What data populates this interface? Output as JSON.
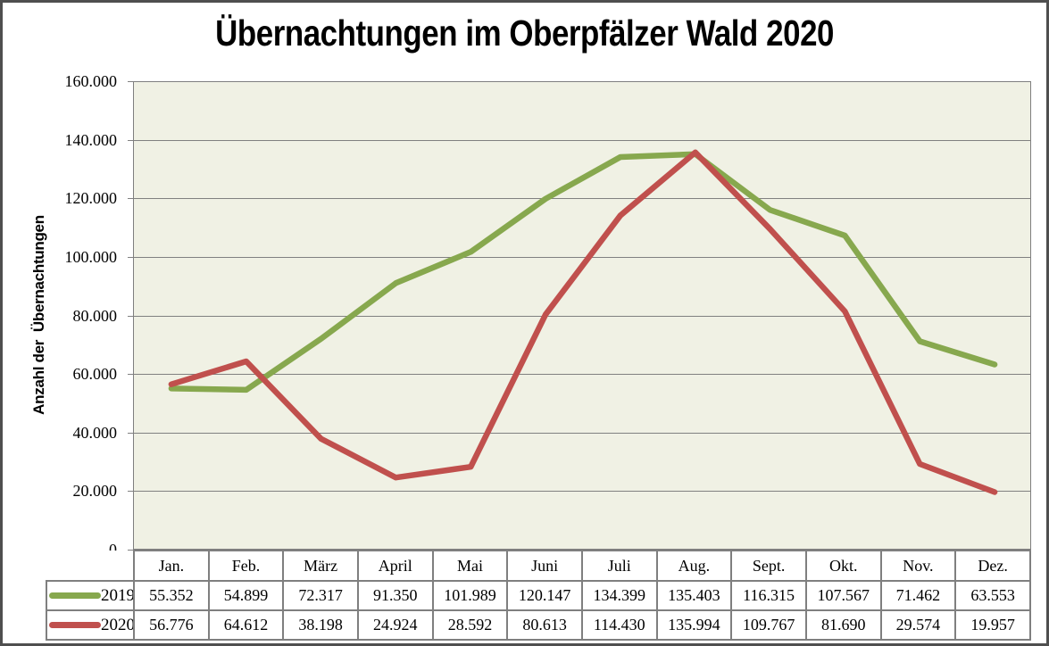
{
  "frame": {
    "border_color": "#4f4f4f",
    "background": "#ffffff"
  },
  "chart_data": {
    "type": "line",
    "title": "Übernachtungen im Oberpfälzer Wald 2020",
    "xlabel": "",
    "ylabel": "Anzahl der  Übernachtungen",
    "categories": [
      "Jan.",
      "Feb.",
      "März",
      "April",
      "Mai",
      "Juni",
      "Juli",
      "Aug.",
      "Sept.",
      "Okt.",
      "Nov.",
      "Dez."
    ],
    "series": [
      {
        "name": "2019",
        "color": "#87a84e",
        "values": [
          55352,
          54899,
          72317,
          91350,
          101989,
          120147,
          134399,
          135403,
          116315,
          107567,
          71462,
          63553
        ],
        "display_values": [
          "55.352",
          "54.899",
          "72.317",
          "91.350",
          "101.989",
          "120.147",
          "134.399",
          "135.403",
          "116.315",
          "107.567",
          "71.462",
          "63.553"
        ]
      },
      {
        "name": "2020",
        "color": "#c0504d",
        "values": [
          56776,
          64612,
          38198,
          24924,
          28592,
          80613,
          114430,
          135994,
          109767,
          81690,
          29574,
          19957
        ],
        "display_values": [
          "56.776",
          "64.612",
          "38.198",
          "24.924",
          "28.592",
          "80.613",
          "114.430",
          "135.994",
          "109.767",
          "81.690",
          "29.574",
          "19.957"
        ]
      }
    ],
    "ylim": [
      0,
      160000
    ],
    "ytick_step": 20000,
    "ytick_labels": [
      "0",
      "20.000",
      "40.000",
      "60.000",
      "80.000",
      "100.000",
      "120.000",
      "140.000",
      "160.000"
    ],
    "grid": true,
    "legend_position": "table-rows-left",
    "plot_bg": "#f0f1e4",
    "grid_color": "#808080",
    "axis_color": "#7f7f7f",
    "table_border_color": "#7f7f7f",
    "line_width": 6.5
  }
}
